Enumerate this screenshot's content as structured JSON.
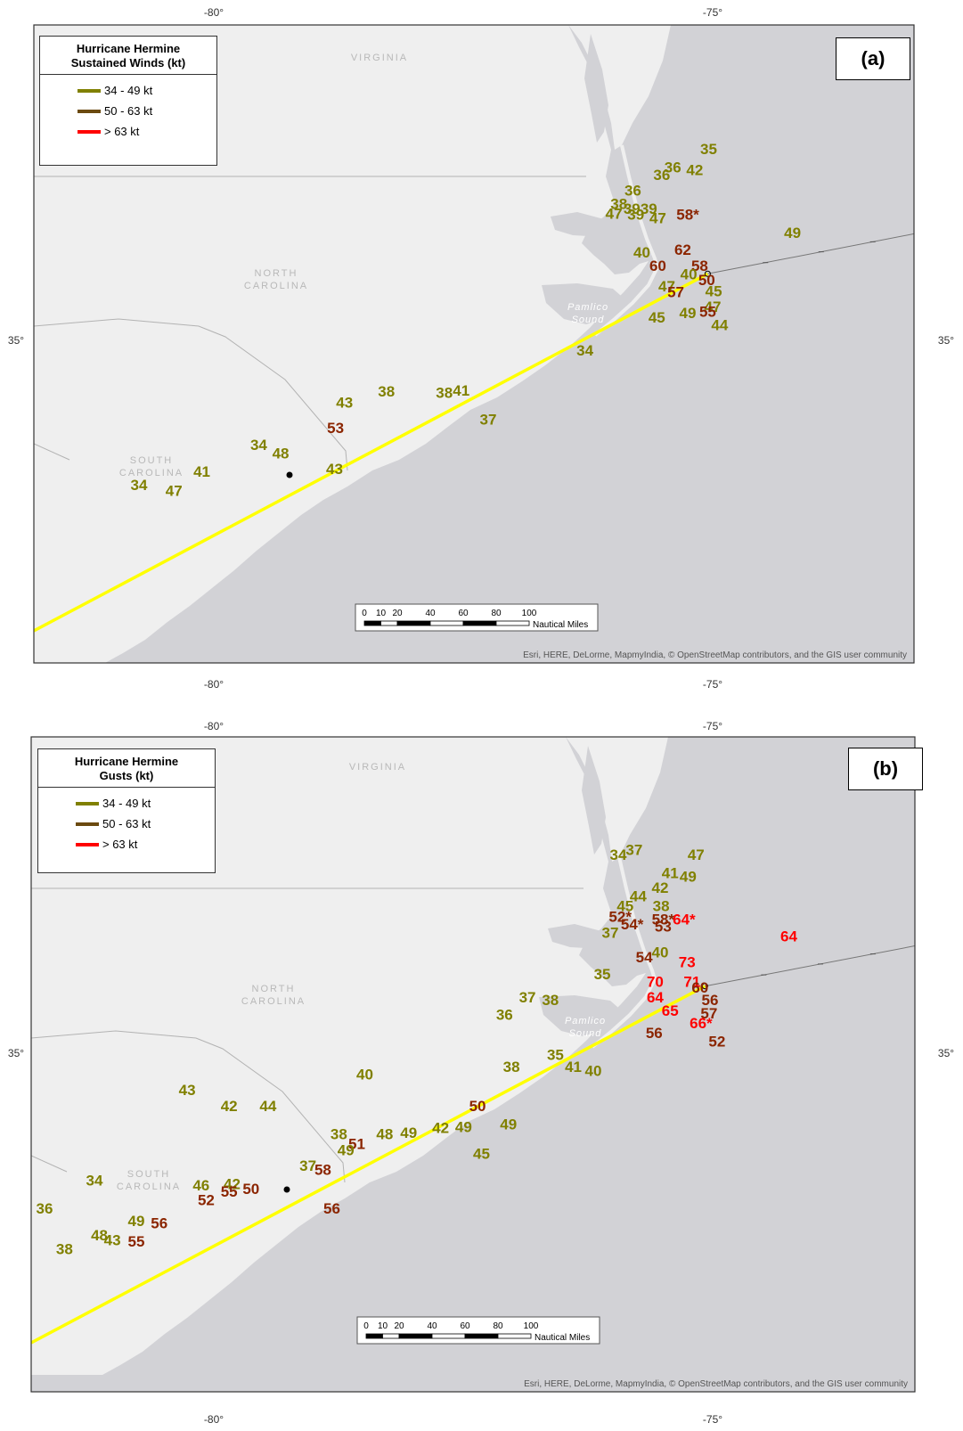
{
  "colors": {
    "land": "#efefef",
    "ocean": "#d2d2d6",
    "track": "#ffff00",
    "cat_34_49": "#808000",
    "cat_50_63": "#8b2500",
    "cat_gt63": "#ff0000",
    "swatch_34_49": "#808000",
    "swatch_50_63": "#6b4a10",
    "swatch_gt63": "#ff0000"
  },
  "axes": {
    "top_left": "-80°",
    "top_right": "-75°",
    "bottom_left": "-80°",
    "bottom_right": "-75°",
    "left_lat": "35°",
    "right_lat": "35°"
  },
  "states": {
    "virginia": "VIRGINIA",
    "north_line1": "NORTH",
    "north_line2": "CAROLINA",
    "south_line1": "SOUTH",
    "south_line2": "CAROLINA",
    "sound_line1": "Pamlico",
    "sound_line2": "Sound"
  },
  "legend_items": {
    "cat1": "34 - 49 kt",
    "cat2": "50 - 63 kt",
    "cat3": "> 63 kt"
  },
  "scale": {
    "ticks": [
      "0",
      "10",
      "20",
      "40",
      "60",
      "80",
      "100"
    ],
    "unit": "Nautical Miles"
  },
  "attribution": "Esri, HERE, DeLorme, MapmyIndia, © OpenStreetMap contributors, and the GIS user community",
  "panels": [
    {
      "label": "(a)",
      "legend_title_line1": "Hurricane Hermine",
      "legend_title_line2": "Sustained Winds (kt)",
      "stations": [
        {
          "v": "35",
          "c": 1,
          "lon": -75.04,
          "lat": 36.55
        },
        {
          "v": "36",
          "c": 1,
          "lon": -75.4,
          "lat": 36.4
        },
        {
          "v": "42",
          "c": 1,
          "lon": -75.18,
          "lat": 36.38
        },
        {
          "v": "36",
          "c": 1,
          "lon": -75.51,
          "lat": 36.34
        },
        {
          "v": "36",
          "c": 1,
          "lon": -75.8,
          "lat": 36.21
        },
        {
          "v": "38",
          "c": 1,
          "lon": -75.94,
          "lat": 36.1
        },
        {
          "v": "39",
          "c": 1,
          "lon": -75.81,
          "lat": 36.06
        },
        {
          "v": "39",
          "c": 1,
          "lon": -75.64,
          "lat": 36.06
        },
        {
          "v": "47",
          "c": 1,
          "lon": -75.99,
          "lat": 36.02
        },
        {
          "v": "39",
          "c": 1,
          "lon": -75.77,
          "lat": 36.01
        },
        {
          "v": "47",
          "c": 1,
          "lon": -75.55,
          "lat": 35.98
        },
        {
          "v": "58*",
          "c": 2,
          "lon": -75.25,
          "lat": 36.01
        },
        {
          "v": "49",
          "c": 1,
          "lon": -74.2,
          "lat": 35.86
        },
        {
          "v": "40",
          "c": 1,
          "lon": -75.71,
          "lat": 35.7
        },
        {
          "v": "62",
          "c": 2,
          "lon": -75.3,
          "lat": 35.72
        },
        {
          "v": "60",
          "c": 2,
          "lon": -75.55,
          "lat": 35.59
        },
        {
          "v": "58",
          "c": 2,
          "lon": -75.13,
          "lat": 35.59
        },
        {
          "v": "40",
          "c": 1,
          "lon": -75.24,
          "lat": 35.52
        },
        {
          "v": "50",
          "c": 2,
          "lon": -75.06,
          "lat": 35.47
        },
        {
          "v": "47",
          "c": 1,
          "lon": -75.46,
          "lat": 35.42
        },
        {
          "v": "57",
          "c": 2,
          "lon": -75.37,
          "lat": 35.37
        },
        {
          "v": "45",
          "c": 1,
          "lon": -74.99,
          "lat": 35.38
        },
        {
          "v": "47",
          "c": 1,
          "lon": -75.0,
          "lat": 35.25
        },
        {
          "v": "49",
          "c": 1,
          "lon": -75.25,
          "lat": 35.2
        },
        {
          "v": "55",
          "c": 2,
          "lon": -75.05,
          "lat": 35.21
        },
        {
          "v": "45",
          "c": 1,
          "lon": -75.56,
          "lat": 35.16
        },
        {
          "v": "44",
          "c": 1,
          "lon": -74.93,
          "lat": 35.1
        },
        {
          "v": "34",
          "c": 1,
          "lon": -76.28,
          "lat": 34.89
        },
        {
          "v": "38",
          "c": 1,
          "lon": -78.27,
          "lat": 34.55
        },
        {
          "v": "38",
          "c": 1,
          "lon": -77.69,
          "lat": 34.54
        },
        {
          "v": "41",
          "c": 1,
          "lon": -77.52,
          "lat": 34.56
        },
        {
          "v": "43",
          "c": 1,
          "lon": -78.69,
          "lat": 34.46
        },
        {
          "v": "37",
          "c": 1,
          "lon": -77.25,
          "lat": 34.32
        },
        {
          "v": "53",
          "c": 2,
          "lon": -78.78,
          "lat": 34.25
        },
        {
          "v": "34",
          "c": 1,
          "lon": -79.55,
          "lat": 34.11
        },
        {
          "v": "48",
          "c": 1,
          "lon": -79.33,
          "lat": 34.04
        },
        {
          "v": "41",
          "c": 1,
          "lon": -80.12,
          "lat": 33.89
        },
        {
          "v": "43",
          "c": 1,
          "lon": -78.79,
          "lat": 33.91
        },
        {
          "v": "34",
          "c": 1,
          "lon": -80.75,
          "lat": 33.78
        },
        {
          "v": "47",
          "c": 1,
          "lon": -80.4,
          "lat": 33.73
        }
      ]
    },
    {
      "label": "(b)",
      "legend_title_line1": "Hurricane Hermine",
      "legend_title_line2": "Gusts (kt)",
      "stations": [
        {
          "v": "37",
          "c": 1,
          "lon": -75.76,
          "lat": 36.64
        },
        {
          "v": "34",
          "c": 1,
          "lon": -75.92,
          "lat": 36.6
        },
        {
          "v": "47",
          "c": 1,
          "lon": -75.14,
          "lat": 36.6
        },
        {
          "v": "41",
          "c": 1,
          "lon": -75.4,
          "lat": 36.45
        },
        {
          "v": "49",
          "c": 1,
          "lon": -75.22,
          "lat": 36.42
        },
        {
          "v": "42",
          "c": 1,
          "lon": -75.5,
          "lat": 36.33
        },
        {
          "v": "44",
          "c": 1,
          "lon": -75.72,
          "lat": 36.26
        },
        {
          "v": "45",
          "c": 1,
          "lon": -75.85,
          "lat": 36.18
        },
        {
          "v": "38",
          "c": 1,
          "lon": -75.49,
          "lat": 36.18
        },
        {
          "v": "52*",
          "c": 2,
          "lon": -75.9,
          "lat": 36.09
        },
        {
          "v": "58*",
          "c": 2,
          "lon": -75.47,
          "lat": 36.07
        },
        {
          "v": "64*",
          "c": 3,
          "lon": -75.26,
          "lat": 36.07
        },
        {
          "v": "54*",
          "c": 2,
          "lon": -75.78,
          "lat": 36.03
        },
        {
          "v": "53",
          "c": 2,
          "lon": -75.47,
          "lat": 36.01
        },
        {
          "v": "37",
          "c": 1,
          "lon": -76.0,
          "lat": 35.96
        },
        {
          "v": "64",
          "c": 3,
          "lon": -74.21,
          "lat": 35.93
        },
        {
          "v": "40",
          "c": 1,
          "lon": -75.5,
          "lat": 35.8
        },
        {
          "v": "54",
          "c": 2,
          "lon": -75.66,
          "lat": 35.76
        },
        {
          "v": "73",
          "c": 3,
          "lon": -75.23,
          "lat": 35.72
        },
        {
          "v": "35",
          "c": 1,
          "lon": -76.08,
          "lat": 35.62
        },
        {
          "v": "70",
          "c": 3,
          "lon": -75.55,
          "lat": 35.56
        },
        {
          "v": "71",
          "c": 3,
          "lon": -75.18,
          "lat": 35.56
        },
        {
          "v": "60",
          "c": 2,
          "lon": -75.1,
          "lat": 35.51
        },
        {
          "v": "37",
          "c": 1,
          "lon": -76.83,
          "lat": 35.43
        },
        {
          "v": "38",
          "c": 1,
          "lon": -76.6,
          "lat": 35.41
        },
        {
          "v": "64",
          "c": 3,
          "lon": -75.55,
          "lat": 35.43
        },
        {
          "v": "56",
          "c": 2,
          "lon": -75.0,
          "lat": 35.41
        },
        {
          "v": "36",
          "c": 1,
          "lon": -77.06,
          "lat": 35.29
        },
        {
          "v": "65",
          "c": 3,
          "lon": -75.4,
          "lat": 35.32
        },
        {
          "v": "57",
          "c": 2,
          "lon": -75.01,
          "lat": 35.3
        },
        {
          "v": "66*",
          "c": 3,
          "lon": -75.09,
          "lat": 35.22
        },
        {
          "v": "56",
          "c": 2,
          "lon": -75.56,
          "lat": 35.14
        },
        {
          "v": "52",
          "c": 2,
          "lon": -74.93,
          "lat": 35.07
        },
        {
          "v": "35",
          "c": 1,
          "lon": -76.55,
          "lat": 34.96
        },
        {
          "v": "38",
          "c": 1,
          "lon": -76.99,
          "lat": 34.86
        },
        {
          "v": "41",
          "c": 1,
          "lon": -76.37,
          "lat": 34.86
        },
        {
          "v": "40",
          "c": 1,
          "lon": -76.17,
          "lat": 34.83
        },
        {
          "v": "40",
          "c": 1,
          "lon": -78.46,
          "lat": 34.8
        },
        {
          "v": "43",
          "c": 1,
          "lon": -80.24,
          "lat": 34.67
        },
        {
          "v": "42",
          "c": 1,
          "lon": -79.82,
          "lat": 34.54
        },
        {
          "v": "44",
          "c": 1,
          "lon": -79.43,
          "lat": 34.54
        },
        {
          "v": "50",
          "c": 2,
          "lon": -77.33,
          "lat": 34.54
        },
        {
          "v": "49",
          "c": 1,
          "lon": -77.02,
          "lat": 34.39
        },
        {
          "v": "42",
          "c": 1,
          "lon": -77.7,
          "lat": 34.36
        },
        {
          "v": "49",
          "c": 1,
          "lon": -77.47,
          "lat": 34.37
        },
        {
          "v": "38",
          "c": 1,
          "lon": -78.72,
          "lat": 34.31
        },
        {
          "v": "48",
          "c": 1,
          "lon": -78.26,
          "lat": 34.31
        },
        {
          "v": "49",
          "c": 1,
          "lon": -78.02,
          "lat": 34.32
        },
        {
          "v": "51",
          "c": 2,
          "lon": -78.54,
          "lat": 34.23
        },
        {
          "v": "49",
          "c": 1,
          "lon": -78.65,
          "lat": 34.18
        },
        {
          "v": "45",
          "c": 1,
          "lon": -77.29,
          "lat": 34.15
        },
        {
          "v": "37",
          "c": 1,
          "lon": -79.03,
          "lat": 34.05
        },
        {
          "v": "58",
          "c": 2,
          "lon": -78.88,
          "lat": 34.02
        },
        {
          "v": "34",
          "c": 1,
          "lon": -81.17,
          "lat": 33.93
        },
        {
          "v": "46",
          "c": 1,
          "lon": -80.1,
          "lat": 33.89
        },
        {
          "v": "42",
          "c": 1,
          "lon": -79.79,
          "lat": 33.9
        },
        {
          "v": "55",
          "c": 2,
          "lon": -79.82,
          "lat": 33.84
        },
        {
          "v": "50",
          "c": 2,
          "lon": -79.6,
          "lat": 33.86
        },
        {
          "v": "52",
          "c": 2,
          "lon": -80.05,
          "lat": 33.77
        },
        {
          "v": "56",
          "c": 2,
          "lon": -78.79,
          "lat": 33.7
        },
        {
          "v": "36",
          "c": 1,
          "lon": -81.67,
          "lat": 33.7
        },
        {
          "v": "49",
          "c": 1,
          "lon": -80.75,
          "lat": 33.6
        },
        {
          "v": "56",
          "c": 2,
          "lon": -80.52,
          "lat": 33.58
        },
        {
          "v": "48",
          "c": 1,
          "lon": -81.12,
          "lat": 33.48
        },
        {
          "v": "43",
          "c": 1,
          "lon": -80.99,
          "lat": 33.44
        },
        {
          "v": "55",
          "c": 2,
          "lon": -80.75,
          "lat": 33.43
        },
        {
          "v": "38",
          "c": 1,
          "lon": -81.47,
          "lat": 33.37
        }
      ]
    }
  ]
}
